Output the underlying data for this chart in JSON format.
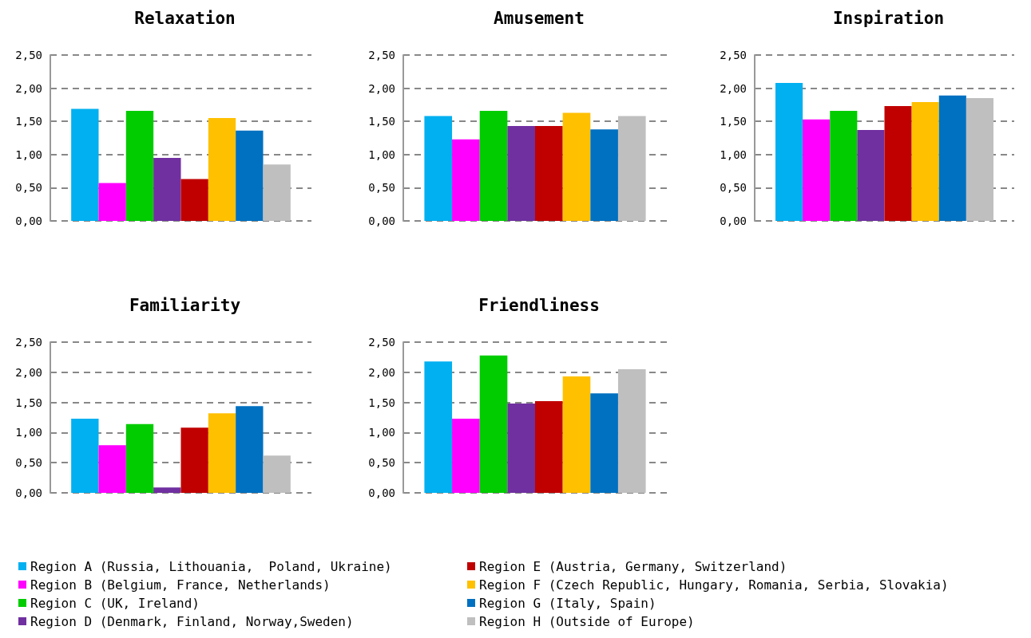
{
  "chart_data": [
    {
      "type": "bar",
      "title": "Relaxation",
      "categories": [
        null
      ],
      "ylim": [
        0,
        2.5
      ],
      "yticks": [
        {
          "value": 0,
          "label": "0,00"
        },
        {
          "value": 0.5,
          "label": "0,50"
        },
        {
          "value": 1,
          "label": "1,00"
        },
        {
          "value": 1.5,
          "label": "1,50"
        },
        {
          "value": 2,
          "label": "2,00"
        },
        {
          "value": 2.5,
          "label": "2,50"
        }
      ],
      "grid": "y",
      "legend": "bottom",
      "series": [
        {
          "name": "Region A (Russia, Lithouania,  Poland, Ukraine)",
          "color": "#00b0f0",
          "values": [
            1.69
          ]
        },
        {
          "name": "Region B (Belgium, France, Netherlands)",
          "color": "#ff00ff",
          "values": [
            0.57
          ]
        },
        {
          "name": "Region C (UK, Ireland)",
          "color": "#00cc00",
          "values": [
            1.66
          ]
        },
        {
          "name": "Region D (Denmark, Finland, Norway,Sweden)",
          "color": "#7030a0",
          "values": [
            0.95
          ]
        },
        {
          "name": "Region E (Austria, Germany, Switzerland)",
          "color": "#c00000",
          "values": [
            0.63
          ]
        },
        {
          "name": "Region F (Czech Republic, Hungary, Romania, Serbia, Slovakia)",
          "color": "#ffc000",
          "values": [
            1.55
          ]
        },
        {
          "name": "Region G (Italy, Spain)",
          "color": "#0070c0",
          "values": [
            1.36
          ]
        },
        {
          "name": "Region H (Outside of Europe)",
          "color": "#bfbfbf",
          "values": [
            0.85
          ]
        }
      ]
    },
    {
      "type": "bar",
      "title": "Amusement",
      "categories": [
        null
      ],
      "ylim": [
        0,
        2.5
      ],
      "yticks": [
        {
          "value": 0,
          "label": "0,00"
        },
        {
          "value": 0.5,
          "label": "0,50"
        },
        {
          "value": 1,
          "label": "1,00"
        },
        {
          "value": 1.5,
          "label": "1,50"
        },
        {
          "value": 2,
          "label": "2,00"
        },
        {
          "value": 2.5,
          "label": "2,50"
        }
      ],
      "grid": "y",
      "legend": "bottom",
      "series": [
        {
          "name": "Region A (Russia, Lithouania,  Poland, Ukraine)",
          "color": "#00b0f0",
          "values": [
            1.58
          ]
        },
        {
          "name": "Region B (Belgium, France, Netherlands)",
          "color": "#ff00ff",
          "values": [
            1.23
          ]
        },
        {
          "name": "Region C (UK, Ireland)",
          "color": "#00cc00",
          "values": [
            1.66
          ]
        },
        {
          "name": "Region D (Denmark, Finland, Norway,Sweden)",
          "color": "#7030a0",
          "values": [
            1.43
          ]
        },
        {
          "name": "Region E (Austria, Germany, Switzerland)",
          "color": "#c00000",
          "values": [
            1.43
          ]
        },
        {
          "name": "Region F (Czech Republic, Hungary, Romania, Serbia, Slovakia)",
          "color": "#ffc000",
          "values": [
            1.63
          ]
        },
        {
          "name": "Region G (Italy, Spain)",
          "color": "#0070c0",
          "values": [
            1.38
          ]
        },
        {
          "name": "Region H (Outside of Europe)",
          "color": "#bfbfbf",
          "values": [
            1.58
          ]
        }
      ]
    },
    {
      "type": "bar",
      "title": "Inspiration",
      "categories": [
        null
      ],
      "ylim": [
        0,
        2.5
      ],
      "yticks": [
        {
          "value": 0,
          "label": "0,00"
        },
        {
          "value": 0.5,
          "label": "0,50"
        },
        {
          "value": 1,
          "label": "1,00"
        },
        {
          "value": 1.5,
          "label": "1,50"
        },
        {
          "value": 2,
          "label": "2,00"
        },
        {
          "value": 2.5,
          "label": "2,50"
        }
      ],
      "grid": "y",
      "legend": "bottom",
      "series": [
        {
          "name": "Region A (Russia, Lithouania,  Poland, Ukraine)",
          "color": "#00b0f0",
          "values": [
            2.08
          ]
        },
        {
          "name": "Region B (Belgium, France, Netherlands)",
          "color": "#ff00ff",
          "values": [
            1.53
          ]
        },
        {
          "name": "Region C (UK, Ireland)",
          "color": "#00cc00",
          "values": [
            1.66
          ]
        },
        {
          "name": "Region D (Denmark, Finland, Norway,Sweden)",
          "color": "#7030a0",
          "values": [
            1.37
          ]
        },
        {
          "name": "Region E (Austria, Germany, Switzerland)",
          "color": "#c00000",
          "values": [
            1.73
          ]
        },
        {
          "name": "Region F (Czech Republic, Hungary, Romania, Serbia, Slovakia)",
          "color": "#ffc000",
          "values": [
            1.79
          ]
        },
        {
          "name": "Region G (Italy, Spain)",
          "color": "#0070c0",
          "values": [
            1.89
          ]
        },
        {
          "name": "Region H (Outside of Europe)",
          "color": "#bfbfbf",
          "values": [
            1.85
          ]
        }
      ]
    },
    {
      "type": "bar",
      "title": "Familiarity",
      "categories": [
        null
      ],
      "ylim": [
        0,
        2.5
      ],
      "yticks": [
        {
          "value": 0,
          "label": "0,00"
        },
        {
          "value": 0.5,
          "label": "0,50"
        },
        {
          "value": 1,
          "label": "1,00"
        },
        {
          "value": 1.5,
          "label": "1,50"
        },
        {
          "value": 2,
          "label": "2,00"
        },
        {
          "value": 2.5,
          "label": "2,50"
        }
      ],
      "grid": "y",
      "legend": "bottom",
      "series": [
        {
          "name": "Region A (Russia, Lithouania,  Poland, Ukraine)",
          "color": "#00b0f0",
          "values": [
            1.23
          ]
        },
        {
          "name": "Region B (Belgium, France, Netherlands)",
          "color": "#ff00ff",
          "values": [
            0.79
          ]
        },
        {
          "name": "Region C (UK, Ireland)",
          "color": "#00cc00",
          "values": [
            1.14
          ]
        },
        {
          "name": "Region D (Denmark, Finland, Norway,Sweden)",
          "color": "#7030a0",
          "values": [
            0.09
          ]
        },
        {
          "name": "Region E (Austria, Germany, Switzerland)",
          "color": "#c00000",
          "values": [
            1.08
          ]
        },
        {
          "name": "Region F (Czech Republic, Hungary, Romania, Serbia, Slovakia)",
          "color": "#ffc000",
          "values": [
            1.32
          ]
        },
        {
          "name": "Region G (Italy, Spain)",
          "color": "#0070c0",
          "values": [
            1.44
          ]
        },
        {
          "name": "Region H (Outside of Europe)",
          "color": "#bfbfbf",
          "values": [
            0.62
          ]
        }
      ]
    },
    {
      "type": "bar",
      "title": "Friendliness",
      "categories": [
        null
      ],
      "ylim": [
        0,
        2.5
      ],
      "yticks": [
        {
          "value": 0,
          "label": "0,00"
        },
        {
          "value": 0.5,
          "label": "0,50"
        },
        {
          "value": 1,
          "label": "1,00"
        },
        {
          "value": 1.5,
          "label": "1,50"
        },
        {
          "value": 2,
          "label": "2,00"
        },
        {
          "value": 2.5,
          "label": "2,50"
        }
      ],
      "grid": "y",
      "legend": "bottom",
      "series": [
        {
          "name": "Region A (Russia, Lithouania,  Poland, Ukraine)",
          "color": "#00b0f0",
          "values": [
            2.18
          ]
        },
        {
          "name": "Region B (Belgium, France, Netherlands)",
          "color": "#ff00ff",
          "values": [
            1.23
          ]
        },
        {
          "name": "Region C (UK, Ireland)",
          "color": "#00cc00",
          "values": [
            2.28
          ]
        },
        {
          "name": "Region D (Denmark, Finland, Norway,Sweden)",
          "color": "#7030a0",
          "values": [
            1.48
          ]
        },
        {
          "name": "Region E (Austria, Germany, Switzerland)",
          "color": "#c00000",
          "values": [
            1.52
          ]
        },
        {
          "name": "Region F (Czech Republic, Hungary, Romania, Serbia, Slovakia)",
          "color": "#ffc000",
          "values": [
            1.93
          ]
        },
        {
          "name": "Region G (Italy, Spain)",
          "color": "#0070c0",
          "values": [
            1.65
          ]
        },
        {
          "name": "Region H (Outside of Europe)",
          "color": "#bfbfbf",
          "values": [
            2.05
          ]
        }
      ]
    }
  ]
}
